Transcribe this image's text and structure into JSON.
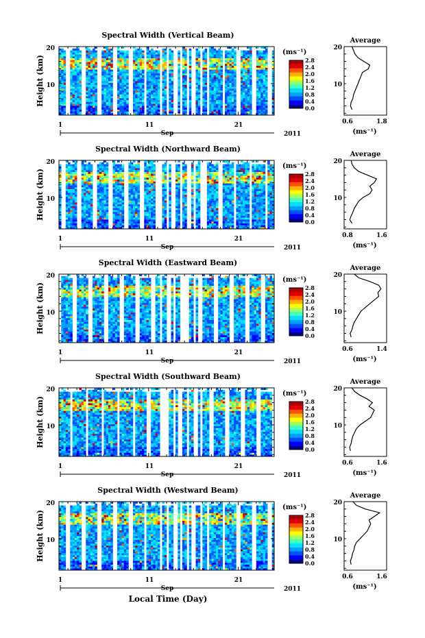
{
  "colorbar": {
    "unit_label": "(ms⁻¹)",
    "ticks": [
      "2.8",
      "2.4",
      "2.0",
      "1.6",
      "1.2",
      "0.8",
      "0.4",
      "0.0"
    ],
    "colors": [
      "#00008f",
      "#0000ff",
      "#0050ff",
      "#00a0ff",
      "#00e0ff",
      "#40ffbf",
      "#a0ff60",
      "#ffff00",
      "#ffb000",
      "#ff5000",
      "#e00000",
      "#b00000"
    ]
  },
  "common_axis": {
    "ylabel": "Height (km)",
    "ytick_labels": [
      "20",
      "10"
    ],
    "xtick_labels": [
      "1",
      "11",
      "21"
    ],
    "month": "Sep",
    "year": "2011",
    "xlabel_bottom": "Local Time (Day)",
    "avg_title": "Average",
    "avg_unit": "(ms⁻¹)"
  },
  "chart_data": [
    {
      "type": "heatmap",
      "title": "Spectral Width (Vertical Beam)",
      "x_range_days": [
        1,
        25
      ],
      "y_range_km": [
        1.5,
        20
      ],
      "clim": [
        0.0,
        2.8
      ],
      "profile": {
        "xlim_labels": [
          "0.6",
          "1.8"
        ],
        "heights_km": [
          3,
          4,
          5,
          6,
          7,
          8,
          9,
          10,
          11,
          12,
          13,
          14,
          15,
          16,
          17,
          18,
          19,
          20
        ],
        "values": [
          0.75,
          0.7,
          0.72,
          0.78,
          0.8,
          0.85,
          0.9,
          0.95,
          1.0,
          1.05,
          1.1,
          1.3,
          1.35,
          1.15,
          0.95,
          0.85,
          0.8,
          0.75
        ]
      }
    },
    {
      "type": "heatmap",
      "title": "Spectral Width (Northward Beam)",
      "x_range_days": [
        1,
        25
      ],
      "y_range_km": [
        1.5,
        20
      ],
      "clim": [
        0.0,
        2.8
      ],
      "profile": {
        "xlim_labels": [
          "0.8",
          "1.6"
        ],
        "heights_km": [
          3,
          4,
          5,
          6,
          7,
          8,
          9,
          10,
          11,
          12,
          13,
          14,
          15,
          16,
          17,
          18,
          19,
          20
        ],
        "values": [
          0.9,
          0.85,
          0.88,
          0.92,
          0.95,
          1.0,
          1.05,
          1.15,
          1.3,
          1.35,
          1.3,
          1.4,
          1.45,
          1.25,
          1.05,
          0.95,
          0.9,
          0.88
        ]
      }
    },
    {
      "type": "heatmap",
      "title": "Spectral Width (Eastward Beam)",
      "x_range_days": [
        1,
        25
      ],
      "y_range_km": [
        1.5,
        20
      ],
      "clim": [
        0.0,
        2.8
      ],
      "profile": {
        "xlim_labels": [
          "0.6",
          "1.4"
        ],
        "heights_km": [
          3,
          4,
          5,
          6,
          7,
          8,
          9,
          10,
          11,
          12,
          13,
          14,
          15,
          16,
          17,
          18,
          19,
          20
        ],
        "values": [
          0.68,
          0.66,
          0.7,
          0.72,
          0.75,
          0.8,
          0.85,
          0.9,
          1.0,
          1.1,
          1.2,
          1.3,
          1.28,
          1.35,
          1.3,
          1.1,
          0.85,
          0.75
        ]
      }
    },
    {
      "type": "heatmap",
      "title": "Spectral Width (Southward Beam)",
      "x_range_days": [
        1,
        25
      ],
      "y_range_km": [
        1.5,
        20
      ],
      "clim": [
        0.0,
        2.8
      ],
      "profile": {
        "xlim_labels": [
          "0.6",
          "1.6"
        ],
        "heights_km": [
          3,
          4,
          5,
          6,
          7,
          8,
          9,
          10,
          11,
          12,
          13,
          14,
          15,
          16,
          17,
          18,
          19,
          20
        ],
        "values": [
          0.68,
          0.66,
          0.7,
          0.72,
          0.75,
          0.8,
          0.85,
          0.95,
          1.1,
          1.25,
          1.3,
          1.35,
          1.2,
          1.3,
          1.15,
          0.95,
          0.8,
          0.72
        ]
      }
    },
    {
      "type": "heatmap",
      "title": "Spectral Width (Westward Beam)",
      "x_range_days": [
        1,
        25
      ],
      "y_range_km": [
        1.5,
        20
      ],
      "clim": [
        0.0,
        2.8
      ],
      "profile": {
        "xlim_labels": [
          "0.6",
          "1.6"
        ],
        "heights_km": [
          3,
          4,
          5,
          6,
          7,
          8,
          9,
          10,
          11,
          12,
          13,
          14,
          15,
          16,
          17,
          18,
          19,
          20
        ],
        "values": [
          0.7,
          0.68,
          0.72,
          0.74,
          0.78,
          0.8,
          0.85,
          0.95,
          1.05,
          1.15,
          1.2,
          1.25,
          1.2,
          1.35,
          1.5,
          1.1,
          0.85,
          0.75
        ]
      }
    }
  ]
}
